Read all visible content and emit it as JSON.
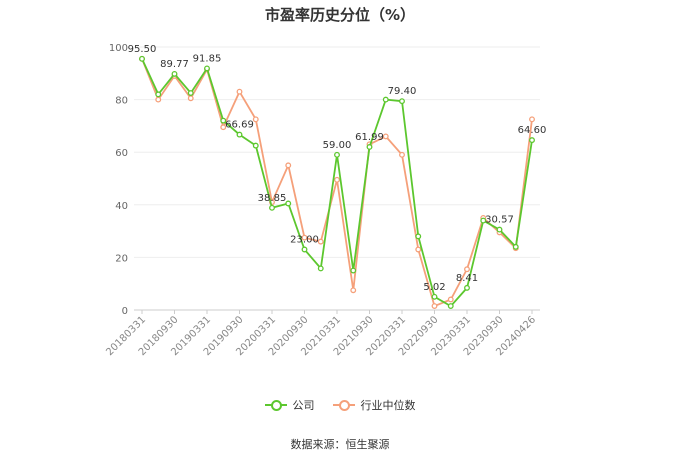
{
  "chart_data": {
    "type": "line",
    "title": "市盈率历史分位（%）",
    "xlabel": "",
    "ylabel": "",
    "ylim": [
      0,
      100
    ],
    "yticks": [
      0,
      20,
      40,
      60,
      80,
      100
    ],
    "grid": true,
    "legend_position": "bottom-center",
    "x": [
      "20180331",
      "20180630",
      "20180930",
      "20181231",
      "20190331",
      "20190630",
      "20190930",
      "20191231",
      "20200331",
      "20200630",
      "20200930",
      "20201231",
      "20210331",
      "20210630",
      "20210930",
      "20211231",
      "20220331",
      "20220630",
      "20220930",
      "20221231",
      "20230331",
      "20230630",
      "20230930",
      "20231231",
      "20240426"
    ],
    "xtick_labels": [
      "20180331",
      "20180930",
      "20190331",
      "20190930",
      "20200331",
      "20200930",
      "20210331",
      "20210930",
      "20220331",
      "20220930",
      "20230331",
      "20230930",
      "20240426"
    ],
    "series": [
      {
        "name": "公司",
        "color": "#5cc72e",
        "values": [
          95.5,
          82,
          89.77,
          82.5,
          91.85,
          72,
          66.69,
          62.5,
          38.85,
          40.5,
          23.0,
          15.8,
          59.0,
          15,
          61.99,
          80,
          79.4,
          28,
          5.02,
          1.5,
          8.41,
          34,
          30.57,
          24,
          64.6
        ],
        "labels": {
          "0": "95.50",
          "2": "89.77",
          "4": "91.85",
          "6": "66.69",
          "8": "38.85",
          "10": "23.00",
          "12": "59.00",
          "14": "61.99",
          "16": "79.40",
          "18": "5.02",
          "20": "8.41",
          "22": "30.57",
          "24": "64.60"
        }
      },
      {
        "name": "行业中位数",
        "color": "#f5a07a",
        "values": [
          95.5,
          80,
          89,
          80.5,
          91.5,
          69.5,
          83,
          72.5,
          41,
          55,
          27.5,
          26,
          49.5,
          7.5,
          63,
          66,
          59,
          23,
          1.5,
          4,
          15.5,
          35,
          29.5,
          23.5,
          72.5
        ]
      }
    ]
  },
  "source": "数据来源：恒生聚源"
}
